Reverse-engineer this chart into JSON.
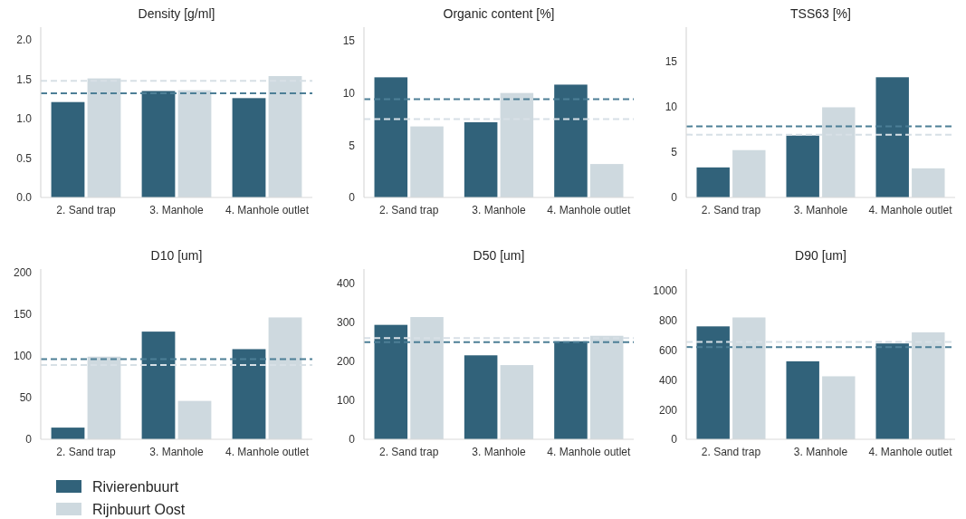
{
  "chart_data": [
    {
      "type": "bar",
      "title": "Density [g/ml]",
      "categories": [
        "2. Sand trap",
        "3. Manhole",
        "4. Manhole outlet"
      ],
      "series": [
        {
          "color": "#31627a",
          "values": [
            1.21,
            1.35,
            1.26
          ]
        },
        {
          "color": "#ced9df",
          "values": [
            1.51,
            1.36,
            1.54
          ]
        }
      ],
      "ylim": [
        0,
        2.16
      ],
      "yticks": [
        {
          "value": 0,
          "label": "0.0"
        },
        0.5,
        {
          "value": 1,
          "label": "1.0"
        },
        1.5,
        {
          "value": 2,
          "label": "2.0"
        }
      ],
      "grid": false,
      "ref_lines": [
        {
          "axis": "y",
          "value": 1.48,
          "color": "#d7e0e6",
          "line_style": "dashed"
        },
        {
          "axis": "y",
          "value": 1.32,
          "color": "#4d7f96",
          "line_style": "dashed"
        }
      ]
    },
    {
      "type": "bar",
      "title": "Organic content [%]",
      "categories": [
        "2. Sand trap",
        "3. Manhole",
        "4. Manhole outlet"
      ],
      "series": [
        {
          "color": "#31627a",
          "values": [
            11.5,
            7.2,
            10.8
          ]
        },
        {
          "color": "#ced9df",
          "values": [
            6.8,
            10,
            3.2
          ]
        }
      ],
      "ylim": [
        0,
        16.3
      ],
      "yticks": [
        0,
        5,
        10,
        15
      ],
      "grid": false,
      "ref_lines": [
        {
          "axis": "y",
          "value": 7.5,
          "color": "#d7e0e6",
          "line_style": "dashed"
        },
        {
          "axis": "y",
          "value": 9.4,
          "color": "#4d7f96",
          "line_style": "dashed"
        }
      ]
    },
    {
      "type": "bar",
      "title": "TSS63 [%]",
      "categories": [
        "2. Sand trap",
        "3. Manhole",
        "4. Manhole outlet"
      ],
      "series": [
        {
          "color": "#31627a",
          "values": [
            3.3,
            6.8,
            13.2
          ]
        },
        {
          "color": "#ced9df",
          "values": [
            5.2,
            9.9,
            3.2
          ]
        }
      ],
      "ylim": [
        0,
        18.7
      ],
      "yticks": [
        0,
        5,
        10,
        15
      ],
      "grid": false,
      "ref_lines": [
        {
          "axis": "y",
          "value": 6.9,
          "color": "#d7e0e6",
          "line_style": "dashed"
        },
        {
          "axis": "y",
          "value": 7.8,
          "color": "#4d7f96",
          "line_style": "dashed"
        }
      ]
    },
    {
      "type": "bar",
      "title": "D10 [um]",
      "categories": [
        "2. Sand trap",
        "3. Manhole",
        "4. Manhole outlet"
      ],
      "series": [
        {
          "name": "Rivierenbuurt",
          "color": "#31627a",
          "values": [
            14,
            129,
            108
          ]
        },
        {
          "name": "Rijnbuurt Oost",
          "color": "#ced9df",
          "values": [
            99,
            46,
            146
          ]
        }
      ],
      "ylim": [
        0,
        204
      ],
      "yticks": [
        0,
        50,
        100,
        150,
        200
      ],
      "grid": false,
      "legend": "bottom",
      "ref_lines": [
        {
          "axis": "y",
          "value": 89,
          "color": "#d7e0e6",
          "line_style": "dashed"
        },
        {
          "axis": "y",
          "value": 96,
          "color": "#4d7f96",
          "line_style": "dashed"
        }
      ]
    },
    {
      "type": "bar",
      "title": "D50 [um]",
      "categories": [
        "2. Sand trap",
        "3. Manhole",
        "4. Manhole outlet"
      ],
      "series": [
        {
          "color": "#31627a",
          "values": [
            293,
            215,
            251
          ]
        },
        {
          "color": "#ced9df",
          "values": [
            313,
            190,
            265
          ]
        }
      ],
      "ylim": [
        0,
        436
      ],
      "yticks": [
        0,
        100,
        200,
        300,
        400
      ],
      "grid": false,
      "ref_lines": [
        {
          "axis": "y",
          "value": 259,
          "color": "#d7e0e6",
          "line_style": "dashed"
        },
        {
          "axis": "y",
          "value": 249,
          "color": "#4d7f96",
          "line_style": "dashed"
        }
      ]
    },
    {
      "type": "bar",
      "title": "D90 [um]",
      "categories": [
        "2. Sand trap",
        "3. Manhole",
        "4. Manhole outlet"
      ],
      "series": [
        {
          "color": "#31627a",
          "values": [
            760,
            525,
            645
          ]
        },
        {
          "color": "#ced9df",
          "values": [
            820,
            424,
            720
          ]
        }
      ],
      "ylim": [
        0,
        1146
      ],
      "yticks": [
        0,
        200,
        400,
        600,
        800,
        1000
      ],
      "grid": false,
      "ref_lines": [
        {
          "axis": "y",
          "value": 655,
          "color": "#d7e0e6",
          "line_style": "dashed"
        },
        {
          "axis": "y",
          "value": 621,
          "color": "#4d7f96",
          "line_style": "dashed"
        }
      ]
    }
  ]
}
